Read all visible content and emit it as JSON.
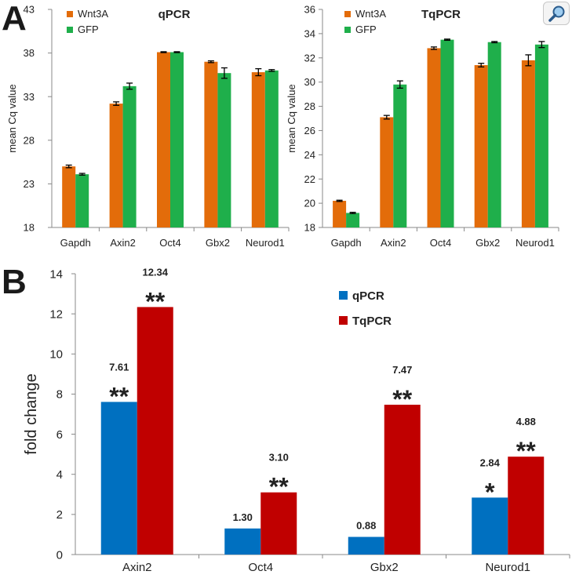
{
  "panels": {
    "a": {
      "letter": "A"
    },
    "b": {
      "letter": "B"
    }
  },
  "colors": {
    "wnt3a": "#E36C0A",
    "gfp": "#1FAF4B",
    "qpcr": "#0070C0",
    "tqpcr": "#C00000",
    "error_bar": "#000000"
  },
  "zoom": {
    "icon": "magnifier-icon"
  },
  "chart_data": [
    {
      "id": "qpcr-cq",
      "type": "bar",
      "title": "qPCR",
      "xlabel": "",
      "ylabel": "mean Cq value",
      "ylim": [
        18,
        43
      ],
      "yticks": [
        "18",
        "23",
        "28",
        "33",
        "38",
        "43"
      ],
      "categories": [
        "Gapdh",
        "Axin2",
        "Oct4",
        "Gbx2",
        "Neurod1"
      ],
      "series": [
        {
          "name": "Wnt3A",
          "values": [
            25.0,
            32.2,
            38.1,
            37.0,
            35.8
          ],
          "errors": [
            0.15,
            0.2,
            0.05,
            0.1,
            0.4
          ]
        },
        {
          "name": "GFP",
          "values": [
            24.1,
            34.2,
            38.1,
            35.7,
            36.0
          ],
          "errors": [
            0.1,
            0.35,
            0.05,
            0.6,
            0.1
          ]
        }
      ],
      "legend_position": "top-left"
    },
    {
      "id": "tqpcr-cq",
      "type": "bar",
      "title": "TqPCR",
      "xlabel": "",
      "ylabel": "mean Cq value",
      "ylim": [
        18,
        36
      ],
      "yticks": [
        "18",
        "20",
        "22",
        "24",
        "26",
        "28",
        "30",
        "32",
        "34",
        "36"
      ],
      "categories": [
        "Gapdh",
        "Axin2",
        "Oct4",
        "Gbx2",
        "Neurod1"
      ],
      "series": [
        {
          "name": "Wnt3A",
          "values": [
            20.2,
            27.1,
            32.8,
            31.4,
            31.8
          ],
          "errors": [
            0.05,
            0.15,
            0.1,
            0.15,
            0.45
          ]
        },
        {
          "name": "GFP",
          "values": [
            19.2,
            29.8,
            33.5,
            33.3,
            33.1
          ],
          "errors": [
            0.05,
            0.3,
            0.05,
            0.05,
            0.25
          ]
        }
      ],
      "legend_position": "top-left"
    },
    {
      "id": "fold-change",
      "type": "bar",
      "title": "",
      "xlabel": "",
      "ylabel": "fold change",
      "ylim": [
        0,
        14
      ],
      "yticks": [
        "0",
        "2",
        "4",
        "6",
        "8",
        "10",
        "12",
        "14"
      ],
      "categories": [
        "Axin2",
        "Oct4",
        "Gbx2",
        "Neurod1"
      ],
      "series": [
        {
          "name": "qPCR",
          "values": [
            7.61,
            1.3,
            0.88,
            2.84
          ],
          "labels": [
            "7.61",
            "1.30",
            "0.88",
            "2.84"
          ],
          "significance": [
            "**",
            "",
            "",
            "*"
          ]
        },
        {
          "name": "TqPCR",
          "values": [
            12.34,
            3.1,
            7.47,
            4.88
          ],
          "labels": [
            "12.34",
            "3.10",
            "7.47",
            "4.88"
          ],
          "significance": [
            "**",
            "**",
            "**",
            "**"
          ]
        }
      ],
      "legend_position": "top-right"
    }
  ]
}
